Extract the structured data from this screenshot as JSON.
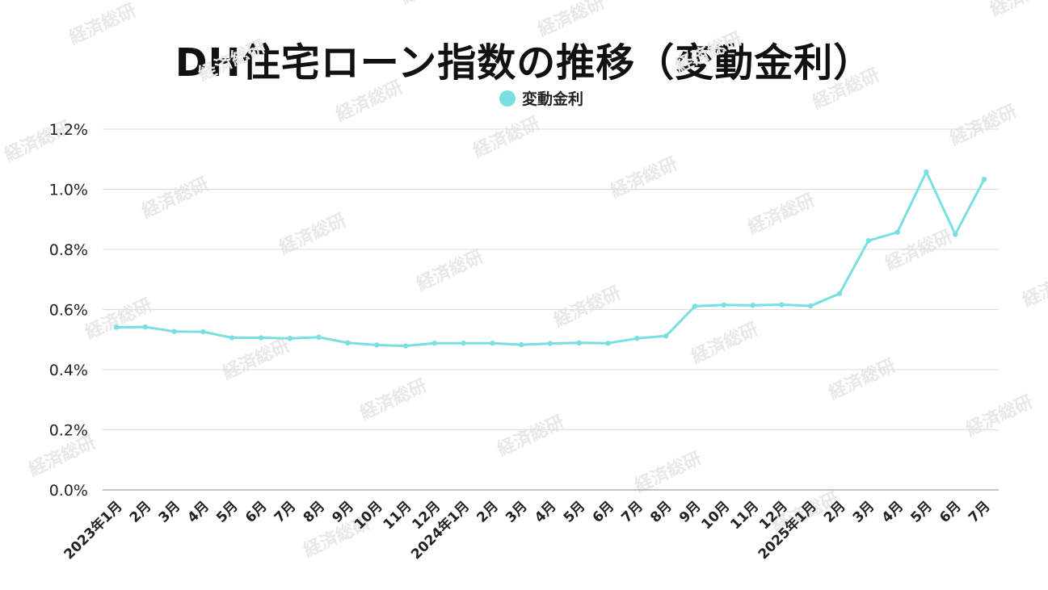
{
  "chart_data": {
    "type": "line",
    "title": "DH住宅ローン指数の推移（変動金利）",
    "categories": [
      "2023年1月",
      "2月",
      "3月",
      "4月",
      "5月",
      "6月",
      "7月",
      "8月",
      "9月",
      "10月",
      "11月",
      "12月",
      "2024年1月",
      "2月",
      "3月",
      "4月",
      "5月",
      "6月",
      "7月",
      "8月",
      "9月",
      "10月",
      "11月",
      "12月",
      "2025年1月",
      "2月",
      "3月",
      "4月",
      "5月",
      "6月",
      "7月"
    ],
    "series": [
      {
        "name": "変動金利",
        "color": "#7adfe0",
        "values": [
          0.541,
          0.542,
          0.527,
          0.526,
          0.506,
          0.506,
          0.504,
          0.508,
          0.489,
          0.482,
          0.479,
          0.488,
          0.488,
          0.488,
          0.483,
          0.487,
          0.489,
          0.488,
          0.504,
          0.512,
          0.611,
          0.615,
          0.614,
          0.616,
          0.612,
          0.653,
          0.829,
          0.857,
          1.058,
          0.85,
          1.033
        ]
      }
    ],
    "yticks": [
      "0.0%",
      "0.2%",
      "0.4%",
      "0.6%",
      "0.8%",
      "1.0%",
      "1.2%"
    ],
    "ylim": [
      0,
      1.2
    ],
    "y_unit": "%",
    "grid": true,
    "legend": "top-center"
  },
  "watermark": "経済総研"
}
